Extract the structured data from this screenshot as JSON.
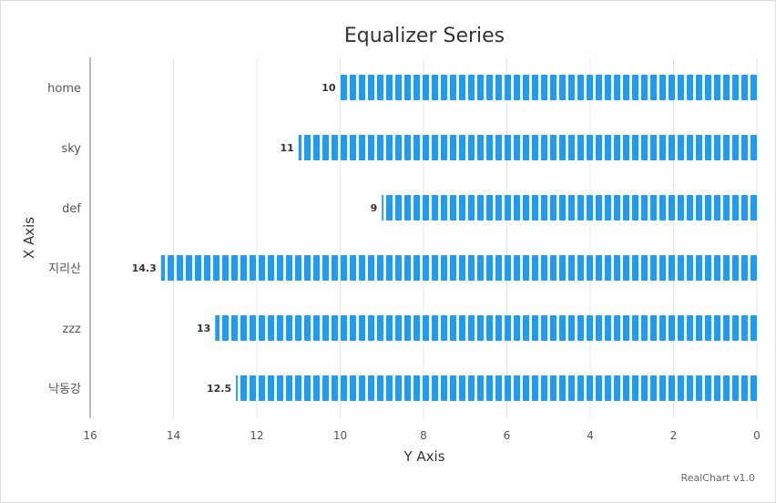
{
  "chart_data": {
    "type": "bar",
    "orientation": "horizontal",
    "title": "Equalizer Series",
    "xlabel": "Y Axis",
    "ylabel": "X Axis",
    "categories": [
      "home",
      "sky",
      "def",
      "지리산",
      "zzz",
      "낙동강"
    ],
    "values": [
      10,
      11,
      9,
      14.3,
      13,
      12.5
    ],
    "value_labels": [
      "10",
      "11",
      "9",
      "14.3",
      "13",
      "12.5"
    ],
    "xlim": [
      16,
      0
    ],
    "ticks": [
      "16",
      "14",
      "12",
      "10",
      "8",
      "6",
      "4",
      "2",
      "0"
    ],
    "grid": true,
    "bar_color": "#1e9bf2",
    "credit": "RealChart v1.0"
  }
}
